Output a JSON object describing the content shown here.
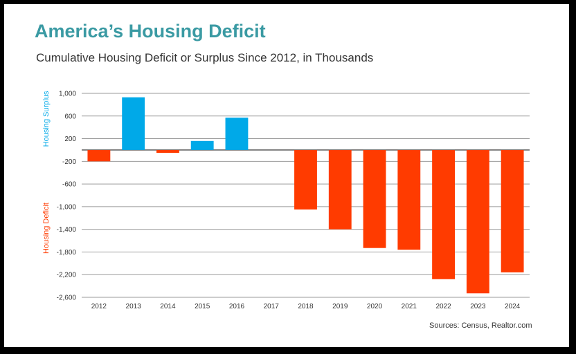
{
  "title": "America’s Housing Deficit",
  "subtitle": "Cumulative Housing Deficit or Surplus Since 2012, in Thousands",
  "source": "Sources: Census, Realtor.com",
  "colors": {
    "surplus": "#00a9e8",
    "deficit": "#ff3b00",
    "title": "#3a9aa3",
    "grid": "#9a9a9a"
  },
  "chart_data": {
    "type": "bar",
    "categories": [
      "2012",
      "2013",
      "2014",
      "2015",
      "2016",
      "2017",
      "2018",
      "2019",
      "2020",
      "2021",
      "2022",
      "2023",
      "2024"
    ],
    "values": [
      -200,
      930,
      -50,
      160,
      570,
      0,
      -1050,
      -1400,
      -1730,
      -1760,
      -2280,
      -2530,
      -2160
    ],
    "ylim": [
      -2600,
      1000
    ],
    "yticks": [
      1000,
      600,
      200,
      -200,
      -600,
      -1000,
      -1400,
      -1800,
      -2200,
      -2600
    ],
    "ytick_labels": [
      "1,000",
      "600",
      "200",
      "-200",
      "-600",
      "-1,000",
      "-1,400",
      "-1,800",
      "-2,200",
      "-2,600"
    ],
    "ylabel_top": "Housing Surplus",
    "ylabel_bottom": "Housing Deficit",
    "grid": true
  }
}
